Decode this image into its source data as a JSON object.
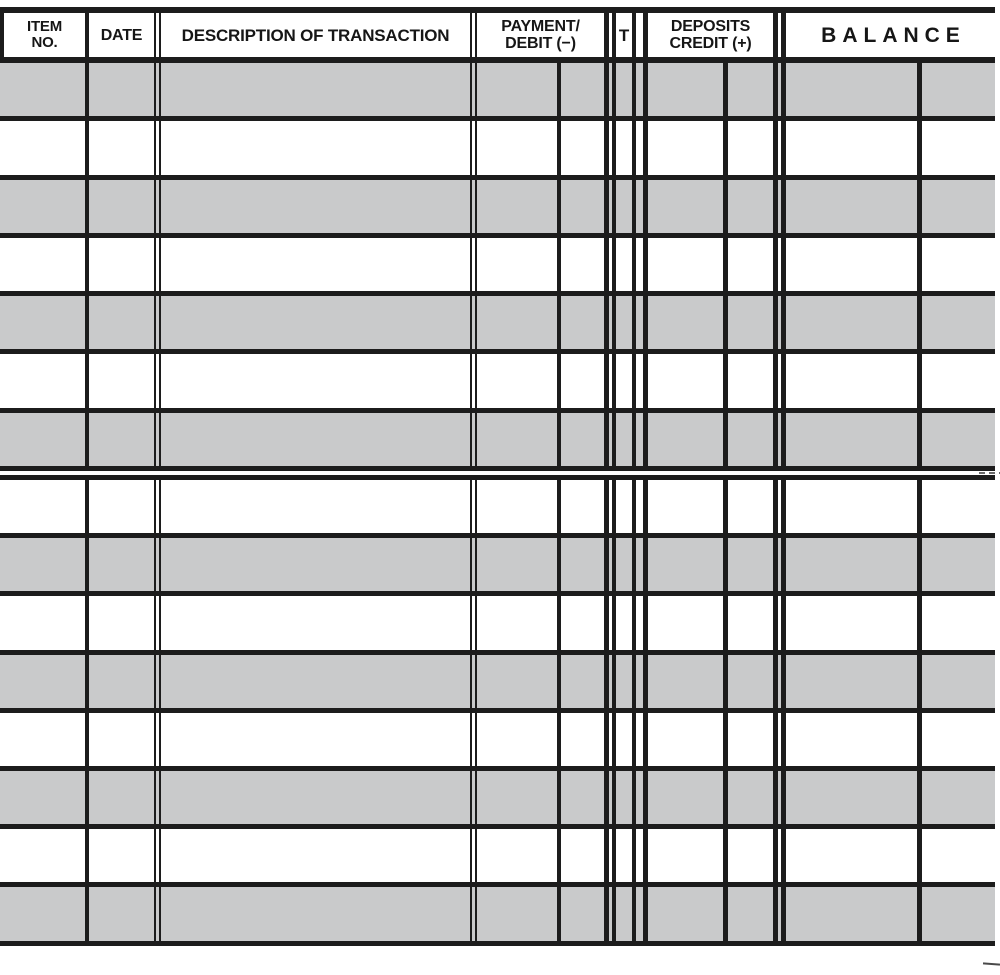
{
  "header": {
    "item_no_line1": "ITEM",
    "item_no_line2": "NO.",
    "date": "DATE",
    "description": "DESCRIPTION OF TRANSACTION",
    "payment_line1": "PAYMENT/",
    "payment_line2": "DEBIT (−)",
    "t": "T",
    "deposits_line1": "DEPOSITS",
    "deposits_line2": "CREDIT (+)",
    "balance": "BALANCE"
  },
  "body": {
    "columns": [
      "item_no",
      "date",
      "description",
      "payment_dollars",
      "payment_cents",
      "t_check",
      "deposit_dollars",
      "deposit_cents",
      "balance_dollars",
      "balance_cents"
    ],
    "rows": [
      {
        "shaded": true
      },
      {
        "shaded": false
      },
      {
        "shaded": true
      },
      {
        "shaded": false
      },
      {
        "shaded": true
      },
      {
        "shaded": false
      },
      {
        "shaded": true
      },
      {
        "shaded": false
      },
      {
        "shaded": true
      },
      {
        "shaded": false
      },
      {
        "shaded": true
      },
      {
        "shaded": false
      },
      {
        "shaded": true
      },
      {
        "shaded": false
      },
      {
        "shaded": true
      }
    ],
    "split_after_row": 7
  },
  "colors": {
    "row_shade": "#c9cacb",
    "line": "#1c1c1c",
    "paper": "#ffffff"
  }
}
